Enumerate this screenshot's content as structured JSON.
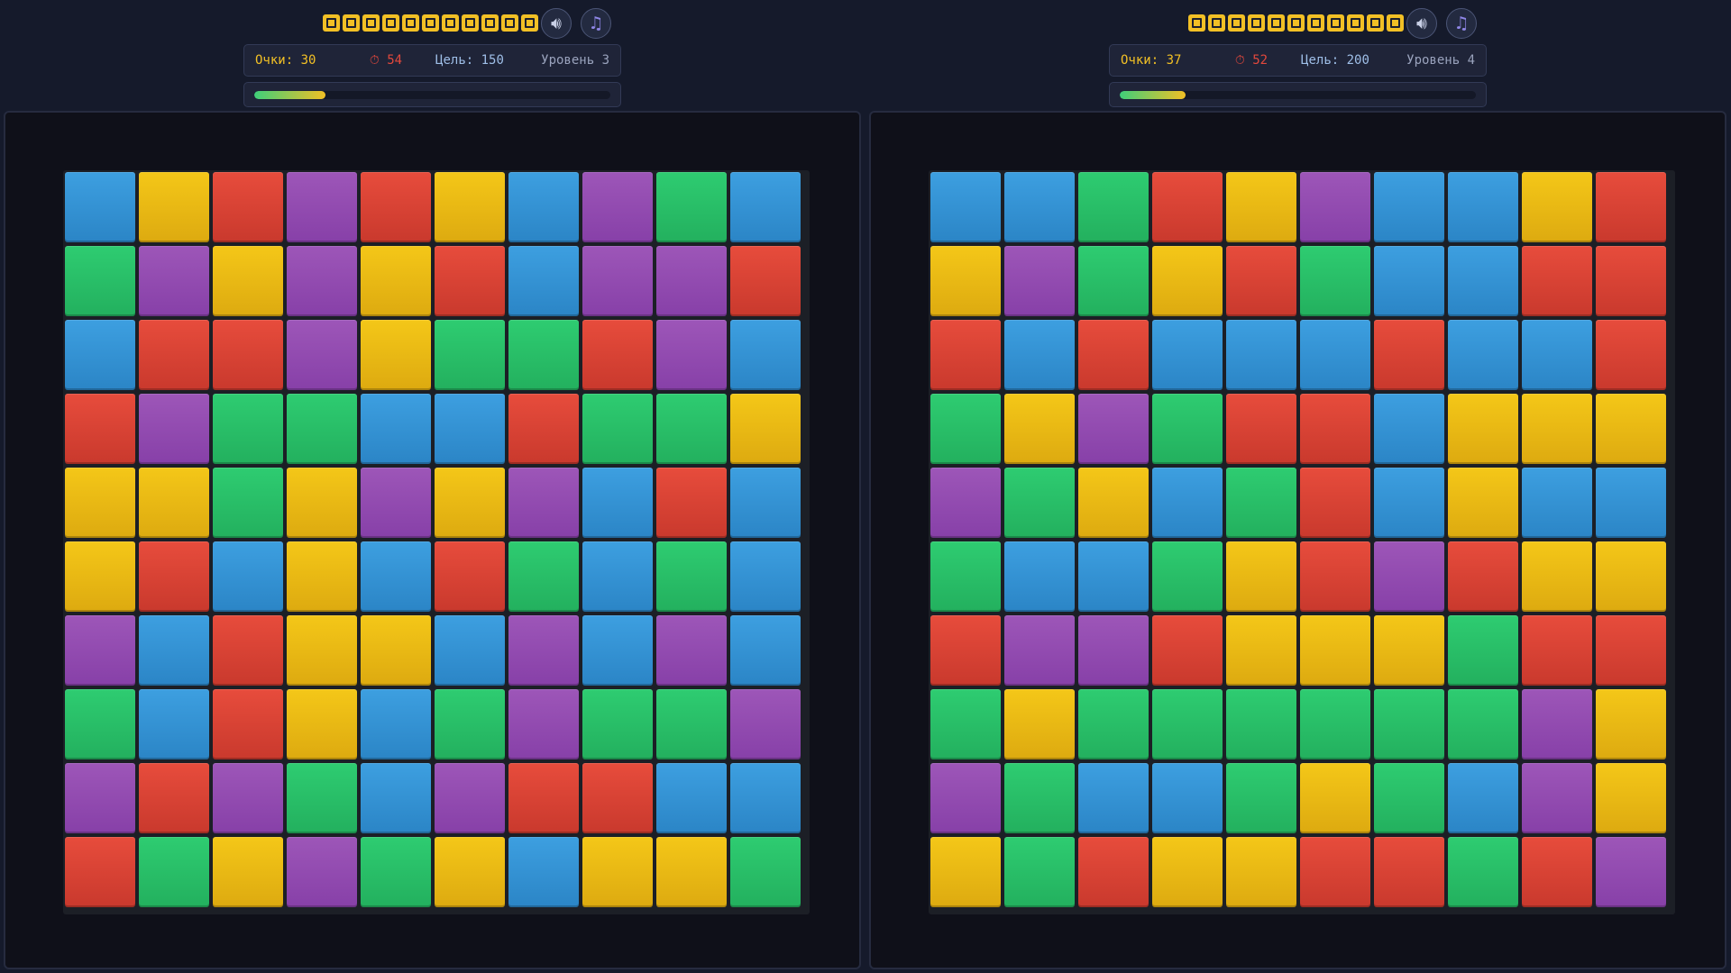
{
  "colors": {
    "blue": "#3498db",
    "yellow": "#f1c40f",
    "red": "#e74c3c",
    "purple": "#9b59b6",
    "green": "#2ecc71",
    "background": "#151a2b",
    "panel": "#0f1019"
  },
  "players": [
    {
      "score_label": "Очки: 30",
      "timer_icon": "stopwatch-icon",
      "timer_value": "54",
      "goal_label": "Цель: 150",
      "level_label": "Уровень 3",
      "progress_fraction": 0.2,
      "sound_icon": "speaker-icon",
      "music_icon": "music-note-icon",
      "legend_icons": [
        "square-block-icon",
        "square-block-icon",
        "square-block-icon",
        "square-block-icon",
        "square-block-icon",
        "square-block-icon",
        "square-block-icon",
        "square-block-icon",
        "square-block-icon",
        "square-block-icon",
        "square-block-icon"
      ],
      "grid": [
        [
          "B",
          "Y",
          "R",
          "P",
          "R",
          "Y",
          "B",
          "P",
          "G",
          "B"
        ],
        [
          "G",
          "P",
          "Y",
          "P",
          "Y",
          "R",
          "B",
          "P",
          "P",
          "R"
        ],
        [
          "B",
          "R",
          "R",
          "P",
          "Y",
          "G",
          "G",
          "R",
          "P",
          "B"
        ],
        [
          "R",
          "P",
          "G",
          "G",
          "B",
          "B",
          "R",
          "G",
          "G",
          "Y"
        ],
        [
          "Y",
          "Y",
          "G",
          "Y",
          "P",
          "Y",
          "P",
          "B",
          "R",
          "B"
        ],
        [
          "Y",
          "R",
          "B",
          "Y",
          "B",
          "R",
          "G",
          "B",
          "G",
          "B"
        ],
        [
          "P",
          "B",
          "R",
          "Y",
          "Y",
          "B",
          "P",
          "B",
          "P",
          "B"
        ],
        [
          "G",
          "B",
          "R",
          "Y",
          "B",
          "G",
          "P",
          "G",
          "G",
          "P"
        ],
        [
          "P",
          "R",
          "P",
          "G",
          "B",
          "P",
          "R",
          "R",
          "B",
          "B"
        ],
        [
          "R",
          "G",
          "Y",
          "P",
          "G",
          "Y",
          "B",
          "Y",
          "Y",
          "G"
        ]
      ]
    },
    {
      "score_label": "Очки: 37",
      "timer_icon": "stopwatch-icon",
      "timer_value": "52",
      "goal_label": "Цель: 200",
      "level_label": "Уровень 4",
      "progress_fraction": 0.185,
      "sound_icon": "speaker-icon",
      "music_icon": "music-note-icon",
      "legend_icons": [
        "square-block-icon",
        "square-block-icon",
        "square-block-icon",
        "square-block-icon",
        "square-block-icon",
        "square-block-icon",
        "square-block-icon",
        "square-block-icon",
        "square-block-icon",
        "square-block-icon",
        "square-block-icon"
      ],
      "grid": [
        [
          "B",
          "B",
          "G",
          "R",
          "Y",
          "P",
          "B",
          "B",
          "Y",
          "R"
        ],
        [
          "Y",
          "P",
          "G",
          "Y",
          "R",
          "G",
          "B",
          "B",
          "R",
          "R"
        ],
        [
          "R",
          "B",
          "R",
          "B",
          "B",
          "B",
          "R",
          "B",
          "B",
          "R"
        ],
        [
          "G",
          "Y",
          "P",
          "G",
          "R",
          "R",
          "B",
          "Y",
          "Y",
          "Y"
        ],
        [
          "P",
          "G",
          "Y",
          "B",
          "G",
          "R",
          "B",
          "Y",
          "B",
          "B"
        ],
        [
          "G",
          "B",
          "B",
          "G",
          "Y",
          "R",
          "P",
          "R",
          "Y",
          "Y"
        ],
        [
          "R",
          "P",
          "P",
          "R",
          "Y",
          "Y",
          "Y",
          "G",
          "R",
          "R"
        ],
        [
          "G",
          "Y",
          "G",
          "G",
          "G",
          "G",
          "G",
          "G",
          "P",
          "Y"
        ],
        [
          "P",
          "G",
          "B",
          "B",
          "G",
          "Y",
          "G",
          "B",
          "P",
          "Y"
        ],
        [
          "Y",
          "G",
          "R",
          "Y",
          "Y",
          "R",
          "R",
          "G",
          "R",
          "P"
        ]
      ]
    }
  ]
}
